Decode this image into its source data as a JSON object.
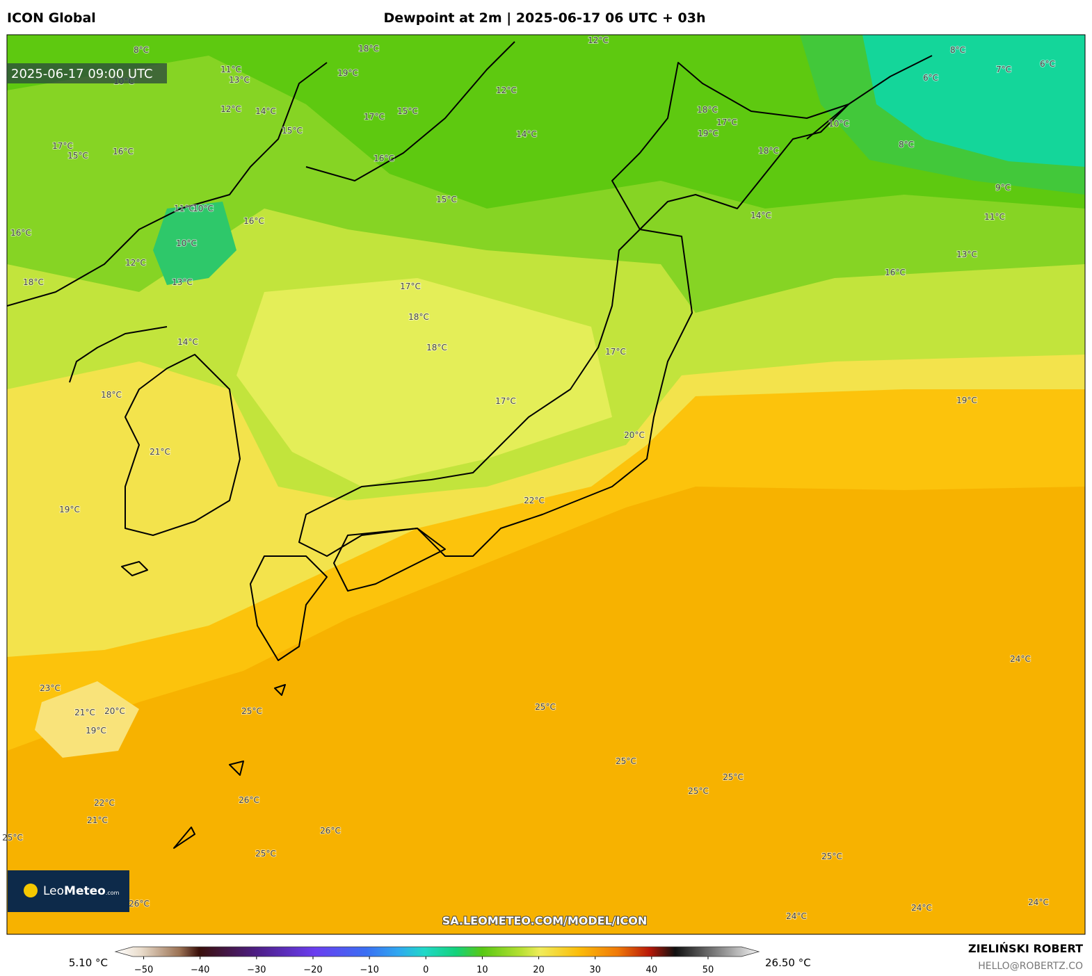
{
  "header": {
    "model": "ICON Global",
    "title": "Dewpoint at 2m | 2025-06-17 06 UTC + 03h"
  },
  "map": {
    "valid_time": "2025-06-17 09:00 UTC",
    "watermark": "SA.LEOMETEO.COM/MODEL/ICON",
    "logo": {
      "name_light": "Leo",
      "name_bold": "Meteo",
      "suffix": ".com"
    },
    "contour_labels": [
      "8°C",
      "11°C",
      "13°C",
      "10°C",
      "12°C",
      "14°C",
      "15°C",
      "16°C",
      "15°C",
      "17°C",
      "19°C",
      "18°C",
      "17°C",
      "15°C",
      "16°C",
      "12°C",
      "12°C",
      "14°C",
      "15°C",
      "11°C",
      "10°C",
      "16°C",
      "16°C",
      "10°C",
      "12°C",
      "13°C",
      "18°C",
      "17°C",
      "18°C",
      "18°C",
      "14°C",
      "18°C",
      "17°C",
      "19°C",
      "18°C",
      "14°C",
      "10°C",
      "8°C",
      "6°C",
      "8°C",
      "7°C",
      "6°C",
      "9°C",
      "11°C",
      "13°C",
      "16°C",
      "17°C",
      "17°C",
      "19°C",
      "20°C",
      "18°C",
      "21°C",
      "19°C",
      "22°C",
      "23°C",
      "21°C",
      "20°C",
      "19°C",
      "25°C",
      "25°C",
      "25°C",
      "25°C",
      "25°C",
      "26°C",
      "26°C",
      "25°C",
      "25°C",
      "24°C",
      "24°C",
      "24°C",
      "24°C",
      "21°C",
      "22°C",
      "26°C",
      "25°C"
    ]
  },
  "colorbar": {
    "min_label": "5.10 °C",
    "max_label": "26.50 °C",
    "range": [
      -55,
      59
    ],
    "ticks": [
      {
        "value": -50,
        "label": "−50"
      },
      {
        "value": -40,
        "label": "−40"
      },
      {
        "value": -30,
        "label": "−30"
      },
      {
        "value": -20,
        "label": "−20"
      },
      {
        "value": -10,
        "label": "−10"
      },
      0,
      10,
      20,
      30,
      40,
      50
    ]
  },
  "credit": {
    "author": "ZIELIŃSKI ROBERT",
    "contact": "HELLO@ROBERTZ.CO"
  }
}
